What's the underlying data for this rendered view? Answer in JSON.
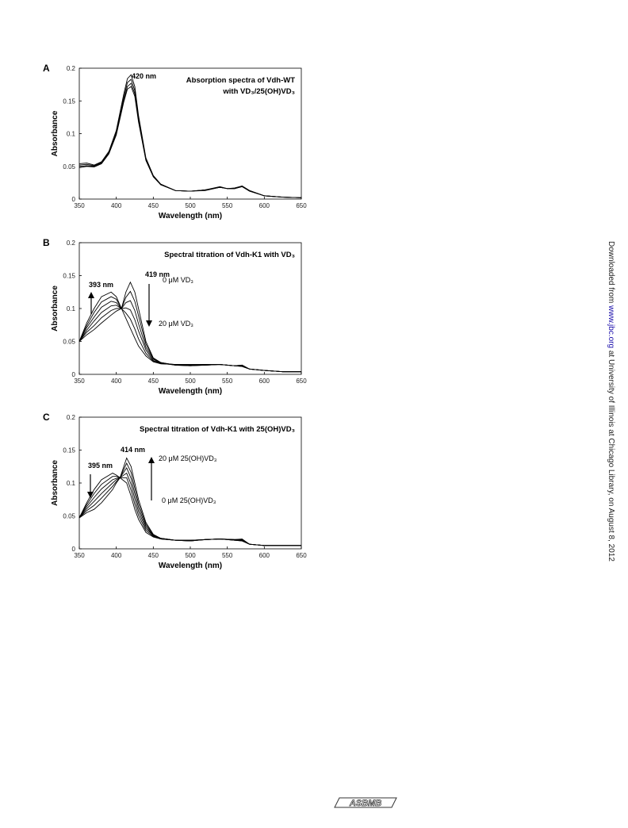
{
  "chart_data": [
    {
      "type": "line",
      "panel": "A",
      "title": "Absorption spectra of Vdh-WT",
      "subtitle": "with VD₃/25(OH)VD₃",
      "x_label": "Wavelength (nm)",
      "y_label": "Absorbance",
      "annotations": [
        "420 nm"
      ],
      "xlim": [
        350,
        650
      ],
      "xticks": [
        350,
        400,
        450,
        500,
        550,
        600,
        650
      ],
      "ylim": [
        0,
        0.2
      ],
      "yticks": [
        0,
        0.05,
        0.1,
        0.15,
        0.2
      ],
      "color": "#000000",
      "x": [
        350,
        360,
        370,
        380,
        390,
        400,
        410,
        415,
        420,
        425,
        430,
        440,
        450,
        460,
        480,
        500,
        520,
        540,
        550,
        560,
        570,
        580,
        600,
        625,
        650
      ],
      "series": [
        {
          "values": [
            0.054,
            0.055,
            0.052,
            0.057,
            0.073,
            0.105,
            0.16,
            0.184,
            0.19,
            0.172,
            0.128,
            0.063,
            0.036,
            0.023,
            0.013,
            0.012,
            0.014,
            0.019,
            0.016,
            0.017,
            0.02,
            0.013,
            0.005,
            0.003,
            0.002
          ]
        },
        {
          "values": [
            0.052,
            0.053,
            0.051,
            0.056,
            0.071,
            0.102,
            0.155,
            0.178,
            0.183,
            0.166,
            0.124,
            0.061,
            0.035,
            0.022,
            0.013,
            0.012,
            0.014,
            0.018,
            0.016,
            0.016,
            0.02,
            0.013,
            0.005,
            0.003,
            0.002
          ]
        },
        {
          "values": [
            0.05,
            0.051,
            0.05,
            0.055,
            0.07,
            0.1,
            0.151,
            0.172,
            0.177,
            0.161,
            0.121,
            0.06,
            0.035,
            0.022,
            0.013,
            0.012,
            0.014,
            0.018,
            0.016,
            0.016,
            0.019,
            0.013,
            0.005,
            0.003,
            0.002
          ]
        },
        {
          "values": [
            0.048,
            0.05,
            0.049,
            0.054,
            0.069,
            0.098,
            0.148,
            0.168,
            0.172,
            0.157,
            0.118,
            0.059,
            0.034,
            0.022,
            0.013,
            0.012,
            0.013,
            0.018,
            0.016,
            0.016,
            0.019,
            0.012,
            0.005,
            0.003,
            0.002
          ]
        }
      ]
    },
    {
      "type": "line",
      "panel": "B",
      "title": "Spectral titration of Vdh-K1 with VD₃",
      "x_label": "Wavelength (nm)",
      "y_label": "Absorbance",
      "annotations": [
        "419 nm",
        "393 nm",
        "0 μM VD₃",
        "20 μM VD₃"
      ],
      "xlim": [
        350,
        650
      ],
      "xticks": [
        350,
        400,
        450,
        500,
        550,
        600,
        650
      ],
      "ylim": [
        0,
        0.2
      ],
      "yticks": [
        0,
        0.05,
        0.1,
        0.15,
        0.2
      ],
      "color": "#000000",
      "x": [
        350,
        360,
        370,
        380,
        393,
        400,
        407,
        413,
        419,
        425,
        430,
        440,
        450,
        460,
        480,
        500,
        520,
        540,
        560,
        570,
        580,
        600,
        625,
        650
      ],
      "series": [
        {
          "values": [
            0.05,
            0.06,
            0.068,
            0.078,
            0.09,
            0.096,
            0.1,
            0.125,
            0.14,
            0.125,
            0.1,
            0.05,
            0.025,
            0.018,
            0.014,
            0.013,
            0.014,
            0.015,
            0.013,
            0.014,
            0.008,
            0.006,
            0.004,
            0.004
          ]
        },
        {
          "values": [
            0.05,
            0.064,
            0.074,
            0.086,
            0.097,
            0.1,
            0.1,
            0.117,
            0.126,
            0.111,
            0.089,
            0.046,
            0.024,
            0.018,
            0.014,
            0.013,
            0.014,
            0.015,
            0.013,
            0.014,
            0.008,
            0.006,
            0.004,
            0.004
          ]
        },
        {
          "values": [
            0.05,
            0.067,
            0.081,
            0.094,
            0.104,
            0.105,
            0.1,
            0.109,
            0.112,
            0.097,
            0.077,
            0.041,
            0.023,
            0.017,
            0.014,
            0.014,
            0.014,
            0.015,
            0.013,
            0.013,
            0.008,
            0.006,
            0.004,
            0.004
          ]
        },
        {
          "values": [
            0.05,
            0.071,
            0.087,
            0.102,
            0.111,
            0.109,
            0.1,
            0.101,
            0.098,
            0.083,
            0.066,
            0.037,
            0.021,
            0.017,
            0.015,
            0.014,
            0.015,
            0.015,
            0.013,
            0.013,
            0.008,
            0.006,
            0.004,
            0.004
          ]
        },
        {
          "values": [
            0.05,
            0.074,
            0.094,
            0.11,
            0.118,
            0.114,
            0.1,
            0.093,
            0.084,
            0.069,
            0.054,
            0.032,
            0.02,
            0.016,
            0.015,
            0.015,
            0.015,
            0.015,
            0.013,
            0.012,
            0.008,
            0.006,
            0.004,
            0.004
          ]
        },
        {
          "values": [
            0.05,
            0.078,
            0.1,
            0.118,
            0.125,
            0.118,
            0.1,
            0.085,
            0.07,
            0.055,
            0.043,
            0.028,
            0.019,
            0.016,
            0.015,
            0.015,
            0.015,
            0.015,
            0.013,
            0.012,
            0.008,
            0.006,
            0.004,
            0.004
          ]
        }
      ]
    },
    {
      "type": "line",
      "panel": "C",
      "title": "Spectral titration of Vdh-K1 with 25(OH)VD₃",
      "x_label": "Wavelength (nm)",
      "y_label": "Absorbance",
      "annotations": [
        "414 nm",
        "395 nm",
        "20 μM 25(OH)VD₃",
        "0 μM 25(OH)VD₃"
      ],
      "xlim": [
        350,
        650
      ],
      "xticks": [
        350,
        400,
        450,
        500,
        550,
        600,
        650
      ],
      "ylim": [
        0,
        0.2
      ],
      "yticks": [
        0,
        0.05,
        0.1,
        0.15,
        0.2
      ],
      "color": "#000000",
      "x": [
        350,
        360,
        370,
        380,
        395,
        400,
        405,
        414,
        420,
        425,
        430,
        440,
        450,
        460,
        480,
        500,
        520,
        540,
        560,
        570,
        580,
        600,
        625,
        650
      ],
      "series": [
        {
          "values": [
            0.047,
            0.07,
            0.09,
            0.105,
            0.115,
            0.112,
            0.108,
            0.1,
            0.08,
            0.06,
            0.045,
            0.025,
            0.018,
            0.015,
            0.013,
            0.013,
            0.014,
            0.015,
            0.014,
            0.015,
            0.007,
            0.005,
            0.005,
            0.005
          ]
        },
        {
          "values": [
            0.047,
            0.067,
            0.084,
            0.098,
            0.11,
            0.11,
            0.108,
            0.108,
            0.089,
            0.068,
            0.051,
            0.028,
            0.019,
            0.015,
            0.013,
            0.013,
            0.014,
            0.015,
            0.014,
            0.014,
            0.007,
            0.005,
            0.005,
            0.005
          ]
        },
        {
          "values": [
            0.047,
            0.064,
            0.078,
            0.091,
            0.105,
            0.107,
            0.108,
            0.115,
            0.098,
            0.076,
            0.057,
            0.031,
            0.02,
            0.015,
            0.013,
            0.013,
            0.014,
            0.015,
            0.014,
            0.014,
            0.007,
            0.005,
            0.005,
            0.005
          ]
        },
        {
          "values": [
            0.047,
            0.061,
            0.072,
            0.084,
            0.1,
            0.105,
            0.108,
            0.123,
            0.107,
            0.084,
            0.063,
            0.034,
            0.02,
            0.016,
            0.013,
            0.012,
            0.014,
            0.015,
            0.013,
            0.013,
            0.007,
            0.005,
            0.005,
            0.005
          ]
        },
        {
          "values": [
            0.047,
            0.058,
            0.066,
            0.077,
            0.095,
            0.102,
            0.108,
            0.13,
            0.116,
            0.092,
            0.069,
            0.037,
            0.021,
            0.016,
            0.013,
            0.012,
            0.014,
            0.015,
            0.013,
            0.012,
            0.007,
            0.005,
            0.005,
            0.005
          ]
        },
        {
          "values": [
            0.047,
            0.055,
            0.06,
            0.07,
            0.09,
            0.1,
            0.108,
            0.138,
            0.125,
            0.1,
            0.075,
            0.04,
            0.022,
            0.016,
            0.013,
            0.012,
            0.014,
            0.015,
            0.013,
            0.012,
            0.007,
            0.005,
            0.005,
            0.005
          ]
        }
      ]
    }
  ],
  "side_note": {
    "before": "Downloaded from ",
    "link": "www.jbc.org",
    "after": " at University of Illinois at Chicago Library, on August 8, 2012"
  },
  "footer": {
    "logo": "ASBMB"
  }
}
